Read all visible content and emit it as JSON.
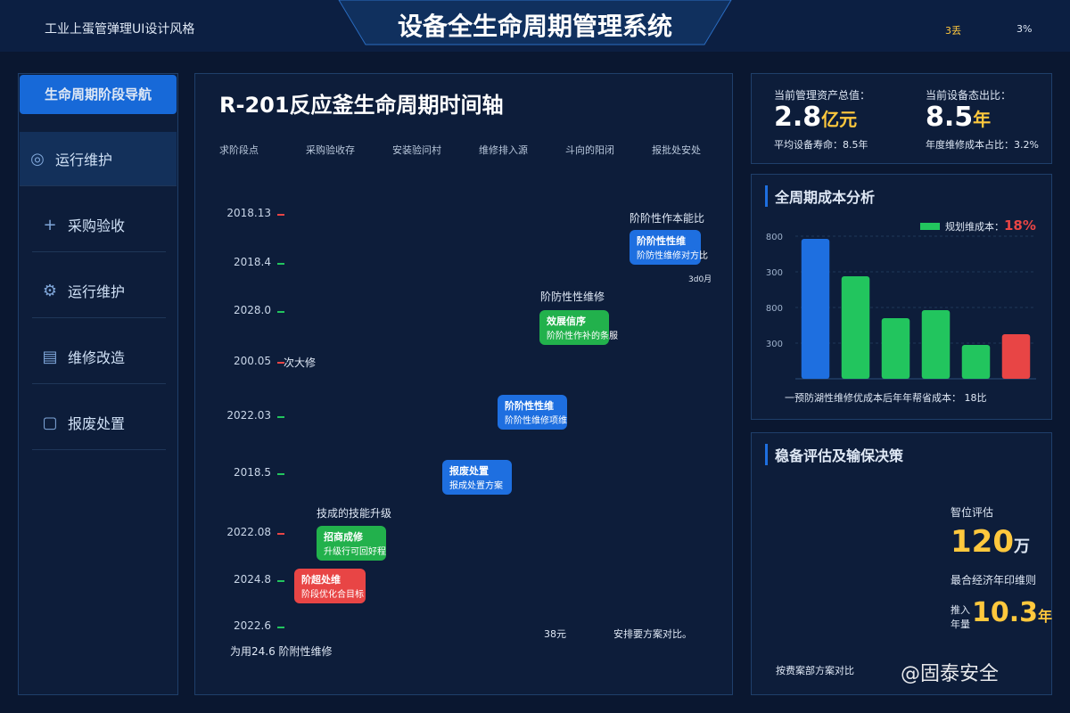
{
  "header": {
    "logo_text": "工业上蛋管弹理UI设计风格",
    "title": "设备全生命周期管理系统",
    "status_label": "3丢",
    "status_value": "3%"
  },
  "nav": {
    "title": "生命周期阶段导航",
    "items": [
      "运行维护",
      "采购验收",
      "运行维护",
      "维修改造",
      "报废处置"
    ]
  },
  "timeline": {
    "title": "R-201反应釜生命周期时间轴",
    "tabs": [
      "求阶段点",
      "采购验收存",
      "安装验问村",
      "维修排入源",
      "斗向的阳闭",
      "报批处安处"
    ],
    "dates": [
      "2018.13",
      "2018.4",
      "2028.0",
      "200.05",
      "2022.03",
      "2018.5",
      "2022.08",
      "2024.8",
      "2022.6"
    ],
    "date_note": "次大修",
    "labels": [
      "阶阶性作本能比",
      "阶防性性维修",
      "技成的技能升级",
      "3d0月"
    ],
    "cards": [
      {
        "title": "阶阶性性维",
        "subtitle": "阶防性维修对方比",
        "color": "#1e6fe0"
      },
      {
        "title": "效展信序",
        "subtitle": "阶阶性作补的条服",
        "color": "#22b14c"
      },
      {
        "title": "阶阶性性维",
        "subtitle": "阶阶性维修项维",
        "color": "#1e6fe0"
      },
      {
        "title": "报废处置",
        "subtitle": "报成处置方案",
        "color": "#1e6fe0"
      },
      {
        "title": "招商成修",
        "subtitle": "升级行可回好程",
        "color": "#22b14c"
      },
      {
        "title": "阶超处维",
        "subtitle": "阶段优化合目标",
        "color": "#e84545"
      }
    ],
    "legend": [
      "38元",
      "安排要方案对比。"
    ],
    "footer": "为用24.6 阶附性维修"
  },
  "stats": {
    "asset_label": "当前管理资产总值：",
    "asset_value": "2.8",
    "asset_unit": "亿元",
    "life_note": "平均设备寿命：8.5年",
    "ratio_label": "当前设备态出比：",
    "ratio_value": "8.5",
    "ratio_unit": "年",
    "cost_note": "年度维修成本占比：3.2%"
  },
  "cost_chart": {
    "type": "bar",
    "title": "全周期成本分析",
    "legend_label": "规划维成本：",
    "legend_value": "18%",
    "tick_labels": [
      "800",
      "300",
      "800",
      "300"
    ],
    "ylim": [
      0,
      800
    ],
    "values": [
      785,
      575,
      340,
      385,
      190,
      250
    ],
    "colors": [
      "#1e6fe0",
      "#22c55e",
      "#22c55e",
      "#22c55e",
      "#22c55e",
      "#e84545"
    ],
    "footnote": "一预防湖性维修优成本后年年帮省成本： 18比"
  },
  "decision": {
    "title": "稳备评估及输保决策",
    "eval_label": "智位评估",
    "eval_value": "120",
    "eval_unit": "万",
    "econ_label": "最合经济年印维则",
    "life_label": "推入年量",
    "life_value": "10.3",
    "life_unit": "年",
    "compare": "按费案部方案对比",
    "watermark": "@固泰安全"
  }
}
